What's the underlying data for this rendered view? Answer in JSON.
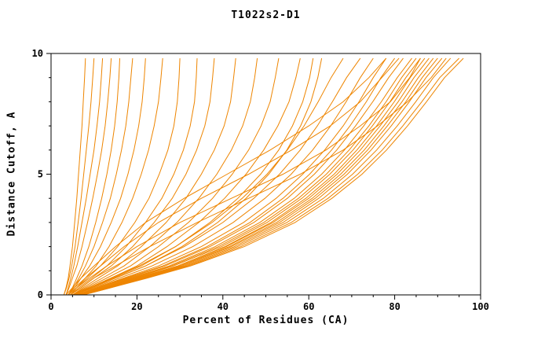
{
  "chart_data": {
    "type": "line",
    "title": "T1022s2-D1",
    "xlabel": "Percent of Residues (CA)",
    "ylabel": "Distance Cutoff, A",
    "xlim": [
      0,
      100
    ],
    "ylim": [
      0,
      10
    ],
    "x_ticks": [
      0,
      20,
      40,
      60,
      80,
      100
    ],
    "y_ticks": [
      0,
      5,
      10
    ],
    "x_minor_step": 5,
    "y_minor_step": 1,
    "grid": false,
    "legend": "none",
    "line_color": "#ee8500",
    "frame_color": "#000000",
    "cutoffs": [
      0,
      0.3,
      0.7,
      1.2,
      2,
      3,
      4,
      5,
      6,
      7,
      8,
      9,
      9.8
    ],
    "series_x_at_cutoff": [
      [
        3,
        3.5,
        4,
        4.4,
        5,
        5.5,
        6,
        6.4,
        6.8,
        7.2,
        7.5,
        7.8,
        8
      ],
      [
        3,
        3.6,
        4.2,
        4.8,
        5.6,
        6.3,
        7,
        7.6,
        8.2,
        8.8,
        9.3,
        9.7,
        10
      ],
      [
        3.5,
        4,
        4.6,
        5.3,
        6.2,
        7.2,
        8.2,
        9.1,
        10,
        10.7,
        11.3,
        11.7,
        12
      ],
      [
        3.5,
        4.2,
        5,
        6,
        7.2,
        8.5,
        9.7,
        10.8,
        11.8,
        12.6,
        13.2,
        13.7,
        14
      ],
      [
        4,
        5,
        6,
        7.2,
        8.8,
        10.4,
        11.8,
        13,
        14,
        14.8,
        15.4,
        15.8,
        16
      ],
      [
        4,
        5.2,
        6.5,
        8,
        10,
        12,
        13.8,
        15.2,
        16.4,
        17.4,
        18.1,
        18.6,
        19
      ],
      [
        4,
        5.5,
        7,
        9,
        11.5,
        14,
        16.2,
        17.9,
        19.3,
        20.4,
        21.2,
        21.7,
        22
      ],
      [
        4.5,
        6,
        8,
        10.5,
        13.5,
        16.5,
        19,
        21,
        22.7,
        24,
        25,
        25.6,
        26
      ],
      [
        4,
        6,
        8.5,
        11.5,
        15.5,
        19.5,
        22.8,
        25.2,
        27.2,
        28.6,
        29.4,
        29.8,
        30
      ],
      [
        4.5,
        6.5,
        9.5,
        13,
        17.5,
        22,
        25.8,
        28.6,
        30.8,
        32.4,
        33.4,
        33.8,
        34
      ],
      [
        4.5,
        7,
        10,
        14,
        19,
        24,
        28.2,
        31.4,
        33.9,
        35.8,
        37,
        37.6,
        38
      ],
      [
        5,
        7.5,
        11,
        15.5,
        21,
        26.8,
        31.4,
        35,
        38,
        40.3,
        41.8,
        42.5,
        43
      ],
      [
        5,
        8,
        12,
        17,
        23,
        29.3,
        34.4,
        38.6,
        42,
        44.6,
        46.4,
        47.4,
        48
      ],
      [
        5,
        8.5,
        13,
        18.5,
        25,
        32,
        37.6,
        42.2,
        46,
        48.9,
        51,
        52.2,
        53
      ],
      [
        5.5,
        9,
        14,
        20,
        27,
        34.4,
        40.4,
        45.4,
        49.5,
        52.8,
        55.4,
        57,
        58
      ],
      [
        5,
        9,
        14.5,
        21,
        29,
        37,
        43.5,
        48.8,
        53,
        56.2,
        58.6,
        60.2,
        61
      ],
      [
        5.5,
        9.5,
        15,
        22,
        30.5,
        38.8,
        45.4,
        50.7,
        54.9,
        58.1,
        60.5,
        62.1,
        63
      ],
      [
        5,
        9,
        14,
        20.5,
        29,
        37.5,
        44.5,
        50.3,
        55,
        58.9,
        62.2,
        65.2,
        68
      ],
      [
        5.5,
        9.5,
        15,
        22,
        31,
        40,
        47.2,
        53.2,
        58,
        62,
        65.5,
        68.8,
        72
      ],
      [
        5.5,
        10,
        16,
        23.5,
        33,
        42.4,
        49.8,
        55.9,
        60.9,
        65.1,
        68.7,
        72,
        75
      ],
      [
        6,
        10.5,
        17,
        25,
        35,
        44.8,
        52.4,
        58.6,
        63.7,
        68,
        71.7,
        75,
        78
      ],
      [
        6,
        11,
        17.5,
        26,
        36.3,
        46.3,
        54,
        60.2,
        65.3,
        69.6,
        73.4,
        76.8,
        80
      ],
      [
        6,
        11,
        18,
        26.5,
        37,
        47.2,
        55,
        61.3,
        66.5,
        70.9,
        74.9,
        78.6,
        82
      ],
      [
        6,
        11.5,
        18.5,
        27.5,
        38.2,
        48.6,
        56.6,
        63,
        68.3,
        72.8,
        76.9,
        80.6,
        84
      ],
      [
        6.5,
        12,
        19,
        28,
        39,
        49.5,
        57.6,
        64.1,
        69.4,
        74,
        78,
        81.6,
        85
      ],
      [
        6.5,
        12,
        19.5,
        28.5,
        39.7,
        50.3,
        58.4,
        64.9,
        70.3,
        74.8,
        78.9,
        82.6,
        86
      ],
      [
        6.5,
        12.5,
        20,
        29.5,
        40.5,
        51.2,
        59.3,
        65.9,
        71.2,
        75.8,
        79.9,
        83.6,
        87
      ],
      [
        7,
        12.5,
        20,
        29.5,
        40.8,
        51.7,
        60,
        66.6,
        72,
        76.6,
        80.8,
        84.5,
        88
      ],
      [
        7,
        13,
        20.5,
        30,
        41.5,
        52.5,
        60.8,
        67.4,
        72.9,
        77.5,
        81.7,
        85.5,
        89
      ],
      [
        7,
        13,
        21,
        30.5,
        42,
        53.2,
        61.5,
        68.2,
        73.7,
        78.3,
        82.6,
        86.4,
        90
      ],
      [
        7,
        13.5,
        21.5,
        31,
        42.7,
        54,
        62.3,
        69,
        74.5,
        79.2,
        83.4,
        87.3,
        91
      ],
      [
        7.5,
        13.5,
        21.5,
        31.5,
        43.4,
        54.9,
        63.4,
        70.2,
        75.8,
        80.6,
        84.9,
        89,
        93
      ],
      [
        7.5,
        14,
        22,
        32,
        44.2,
        55.9,
        64.5,
        71.4,
        77.1,
        81.9,
        86.3,
        90.5,
        95
      ],
      [
        7.5,
        14,
        22.5,
        32.5,
        45,
        56.8,
        65.4,
        72.4,
        78.1,
        83,
        87.4,
        91.6,
        96
      ],
      [
        4,
        6,
        9,
        13,
        20,
        30,
        42,
        54,
        64,
        72,
        79,
        83.5,
        86
      ],
      [
        4.5,
        7,
        10,
        15,
        23,
        34,
        46,
        58,
        68,
        76,
        83,
        88.5,
        92
      ],
      [
        3.5,
        5,
        7,
        10,
        15,
        22,
        31,
        41,
        51,
        60,
        68,
        74,
        78
      ],
      [
        4,
        5.5,
        8,
        11.5,
        17,
        25,
        35,
        46,
        56,
        65,
        72,
        77,
        81
      ]
    ]
  }
}
